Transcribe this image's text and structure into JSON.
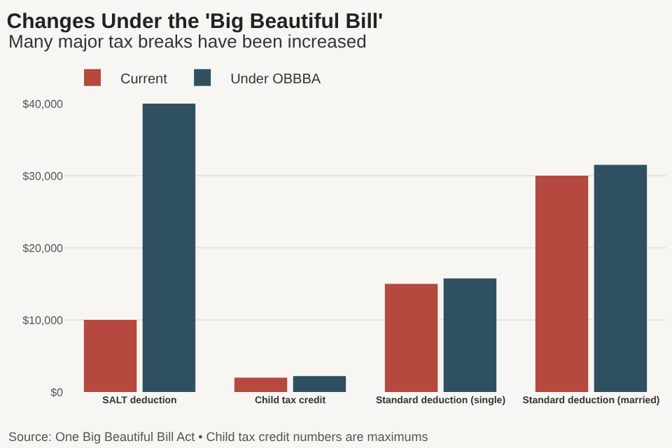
{
  "chart_data": {
    "type": "bar",
    "title": "Changes Under the 'Big Beautiful Bill'",
    "subtitle": "Many major tax breaks have been increased",
    "categories": [
      "SALT deduction",
      "Child tax credit",
      "Standard deduction (single)",
      "Standard deduction (married)"
    ],
    "series": [
      {
        "name": "Current",
        "color": "#b5483f",
        "values": [
          10000,
          2000,
          15000,
          30000
        ]
      },
      {
        "name": "Under OBBBA",
        "color": "#2f5060",
        "values": [
          40000,
          2200,
          15750,
          31500
        ]
      }
    ],
    "ylim": [
      0,
      40000
    ],
    "yticks": [
      {
        "value": 0,
        "label": "$0"
      },
      {
        "value": 10000,
        "label": "$10,000"
      },
      {
        "value": 20000,
        "label": "$20,000"
      },
      {
        "value": 30000,
        "label": "$30,000"
      },
      {
        "value": 40000,
        "label": "$40,000"
      }
    ],
    "grid": "y",
    "legend": "top left",
    "annotations": [
      "Source: One Big Beautiful Bill Act • Child tax credit numbers are maximums"
    ]
  }
}
